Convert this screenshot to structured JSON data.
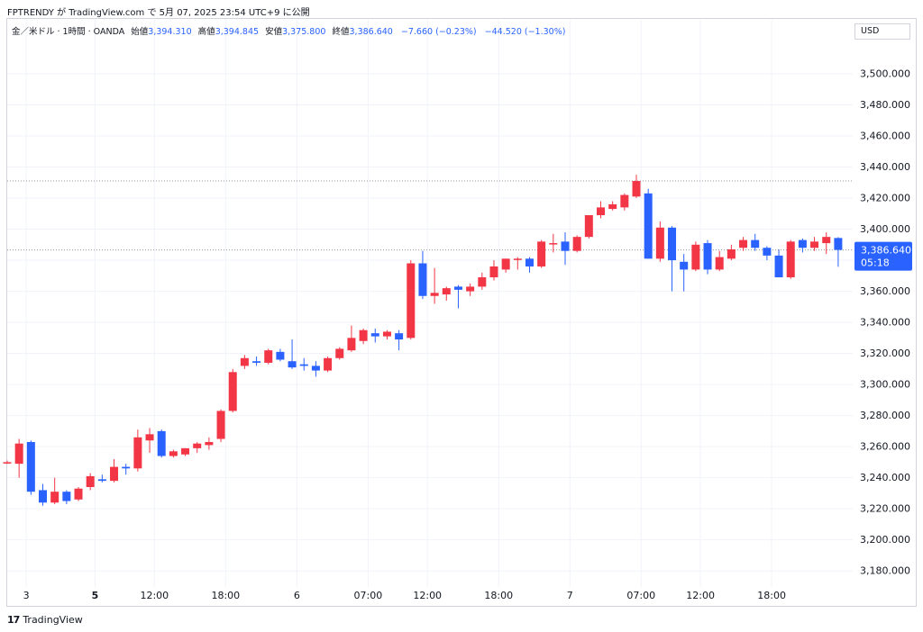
{
  "attribution": "FPTRENDY が TradingView.com で 5月 07, 2025 23:54 UTC+9 に公開",
  "legend": {
    "symbol": "金／米ドル · 1時間 · OANDA",
    "open_label": "始値",
    "open": "3,394.310",
    "high_label": "高値",
    "high": "3,394.845",
    "low_label": "安値",
    "low": "3,375.800",
    "close_label": "終値",
    "close": "3,386.640",
    "change": "−7.660 (−0.23%)",
    "change2": "−44.520 (−1.30%)"
  },
  "currency": "USD",
  "price_tag": {
    "price": "3,386.640",
    "countdown": "05:18"
  },
  "footer": {
    "brand": "TradingView",
    "logo_icon": "tradingview-logo-icon"
  },
  "colors": {
    "up": "#f23645",
    "down": "#2962ff",
    "grid": "#f0f3fa",
    "dotted": "#9598a1"
  },
  "chart_data": {
    "type": "candlestick",
    "ylim": [
      3172,
      3522
    ],
    "y_ticks": [
      "3,180.000",
      "3,200.000",
      "3,220.000",
      "3,240.000",
      "3,260.000",
      "3,280.000",
      "3,300.000",
      "3,320.000",
      "3,340.000",
      "3,360.000",
      "3,380.000",
      "3,400.000",
      "3,420.000",
      "3,440.000",
      "3,460.000",
      "3,480.000",
      "3,500.000"
    ],
    "x_ticks": [
      {
        "label": "3",
        "index": 1.6,
        "bold": false
      },
      {
        "label": "5",
        "index": 7.4,
        "bold": true
      },
      {
        "label": "12:00",
        "index": 12.4,
        "bold": false
      },
      {
        "label": "18:00",
        "index": 18.4,
        "bold": false
      },
      {
        "label": "6",
        "index": 24.4,
        "bold": false
      },
      {
        "label": "07:00",
        "index": 30.4,
        "bold": false
      },
      {
        "label": "12:00",
        "index": 35.4,
        "bold": false
      },
      {
        "label": "18:00",
        "index": 41.4,
        "bold": false
      },
      {
        "label": "7",
        "index": 47.4,
        "bold": false
      },
      {
        "label": "07:00",
        "index": 53.4,
        "bold": false
      },
      {
        "label": "12:00",
        "index": 58.4,
        "bold": false
      },
      {
        "label": "18:00",
        "index": 64.4,
        "bold": false
      }
    ],
    "reference_lines": [
      3431,
      3386.64
    ],
    "candles": [
      {
        "o": 3250,
        "h": 3251,
        "l": 3249,
        "c": 3250
      },
      {
        "o": 3249,
        "h": 3265,
        "l": 3240,
        "c": 3262
      },
      {
        "o": 3263,
        "h": 3264,
        "l": 3229,
        "c": 3231
      },
      {
        "o": 3232,
        "h": 3236,
        "l": 3222,
        "c": 3224
      },
      {
        "o": 3224,
        "h": 3240,
        "l": 3223,
        "c": 3231
      },
      {
        "o": 3231,
        "h": 3232,
        "l": 3223,
        "c": 3225
      },
      {
        "o": 3226,
        "h": 3234,
        "l": 3225,
        "c": 3233
      },
      {
        "o": 3234,
        "h": 3243,
        "l": 3232,
        "c": 3241
      },
      {
        "o": 3239,
        "h": 3242,
        "l": 3237,
        "c": 3238
      },
      {
        "o": 3238,
        "h": 3252,
        "l": 3237,
        "c": 3247
      },
      {
        "o": 3247,
        "h": 3249,
        "l": 3242,
        "c": 3246
      },
      {
        "o": 3246,
        "h": 3271,
        "l": 3244,
        "c": 3266
      },
      {
        "o": 3264,
        "h": 3272,
        "l": 3256,
        "c": 3268
      },
      {
        "o": 3270,
        "h": 3271,
        "l": 3253,
        "c": 3254
      },
      {
        "o": 3254,
        "h": 3258,
        "l": 3253,
        "c": 3257
      },
      {
        "o": 3255,
        "h": 3259,
        "l": 3254,
        "c": 3259
      },
      {
        "o": 3259,
        "h": 3263,
        "l": 3256,
        "c": 3262
      },
      {
        "o": 3261,
        "h": 3266,
        "l": 3258,
        "c": 3263
      },
      {
        "o": 3265,
        "h": 3284,
        "l": 3263,
        "c": 3283
      },
      {
        "o": 3283,
        "h": 3310,
        "l": 3282,
        "c": 3308
      },
      {
        "o": 3312,
        "h": 3319,
        "l": 3310,
        "c": 3317
      },
      {
        "o": 3315,
        "h": 3318,
        "l": 3312,
        "c": 3314
      },
      {
        "o": 3314,
        "h": 3323,
        "l": 3313,
        "c": 3322
      },
      {
        "o": 3321,
        "h": 3323,
        "l": 3315,
        "c": 3316
      },
      {
        "o": 3315,
        "h": 3329,
        "l": 3310,
        "c": 3311
      },
      {
        "o": 3313,
        "h": 3317,
        "l": 3309,
        "c": 3312
      },
      {
        "o": 3312,
        "h": 3315,
        "l": 3305,
        "c": 3309
      },
      {
        "o": 3309,
        "h": 3318,
        "l": 3308,
        "c": 3317
      },
      {
        "o": 3317,
        "h": 3324,
        "l": 3316,
        "c": 3323
      },
      {
        "o": 3322,
        "h": 3338,
        "l": 3321,
        "c": 3330
      },
      {
        "o": 3328,
        "h": 3336,
        "l": 3326,
        "c": 3335
      },
      {
        "o": 3333,
        "h": 3336,
        "l": 3327,
        "c": 3331
      },
      {
        "o": 3331,
        "h": 3335,
        "l": 3329,
        "c": 3334
      },
      {
        "o": 3333,
        "h": 3335,
        "l": 3322,
        "c": 3329
      },
      {
        "o": 3330,
        "h": 3380,
        "l": 3329,
        "c": 3378
      },
      {
        "o": 3378,
        "h": 3386,
        "l": 3355,
        "c": 3357
      },
      {
        "o": 3357,
        "h": 3375,
        "l": 3352,
        "c": 3359
      },
      {
        "o": 3358,
        "h": 3363,
        "l": 3354,
        "c": 3362
      },
      {
        "o": 3363,
        "h": 3364,
        "l": 3349,
        "c": 3361
      },
      {
        "o": 3360,
        "h": 3365,
        "l": 3357,
        "c": 3363
      },
      {
        "o": 3363,
        "h": 3372,
        "l": 3361,
        "c": 3369
      },
      {
        "o": 3369,
        "h": 3380,
        "l": 3367,
        "c": 3376
      },
      {
        "o": 3374,
        "h": 3381,
        "l": 3372,
        "c": 3381
      },
      {
        "o": 3381,
        "h": 3382,
        "l": 3374,
        "c": 3381
      },
      {
        "o": 3381,
        "h": 3382,
        "l": 3372,
        "c": 3376
      },
      {
        "o": 3376,
        "h": 3393,
        "l": 3375,
        "c": 3392
      },
      {
        "o": 3391,
        "h": 3397,
        "l": 3385,
        "c": 3391
      },
      {
        "o": 3392,
        "h": 3398,
        "l": 3377,
        "c": 3386
      },
      {
        "o": 3386,
        "h": 3396,
        "l": 3385,
        "c": 3395
      },
      {
        "o": 3395,
        "h": 3409,
        "l": 3394,
        "c": 3409
      },
      {
        "o": 3409,
        "h": 3418,
        "l": 3407,
        "c": 3414
      },
      {
        "o": 3413,
        "h": 3418,
        "l": 3412,
        "c": 3416
      },
      {
        "o": 3414,
        "h": 3423,
        "l": 3412,
        "c": 3422
      },
      {
        "o": 3421,
        "h": 3435,
        "l": 3420,
        "c": 3431
      },
      {
        "o": 3423,
        "h": 3426,
        "l": 3381,
        "c": 3381
      },
      {
        "o": 3381,
        "h": 3405,
        "l": 3379,
        "c": 3401
      },
      {
        "o": 3401,
        "h": 3402,
        "l": 3360,
        "c": 3380
      },
      {
        "o": 3379,
        "h": 3384,
        "l": 3360,
        "c": 3374
      },
      {
        "o": 3374,
        "h": 3392,
        "l": 3373,
        "c": 3390
      },
      {
        "o": 3391,
        "h": 3393,
        "l": 3371,
        "c": 3374
      },
      {
        "o": 3374,
        "h": 3386,
        "l": 3373,
        "c": 3382
      },
      {
        "o": 3381,
        "h": 3390,
        "l": 3380,
        "c": 3387
      },
      {
        "o": 3388,
        "h": 3395,
        "l": 3386,
        "c": 3393
      },
      {
        "o": 3393,
        "h": 3397,
        "l": 3386,
        "c": 3388
      },
      {
        "o": 3388,
        "h": 3389,
        "l": 3380,
        "c": 3383
      },
      {
        "o": 3383,
        "h": 3387,
        "l": 3369,
        "c": 3369
      },
      {
        "o": 3369,
        "h": 3393,
        "l": 3368,
        "c": 3392
      },
      {
        "o": 3393,
        "h": 3394,
        "l": 3385,
        "c": 3388
      },
      {
        "o": 3388,
        "h": 3395,
        "l": 3386,
        "c": 3392
      },
      {
        "o": 3391,
        "h": 3398,
        "l": 3384,
        "c": 3395
      },
      {
        "o": 3394.31,
        "h": 3394.845,
        "l": 3375.8,
        "c": 3386.64
      }
    ]
  }
}
